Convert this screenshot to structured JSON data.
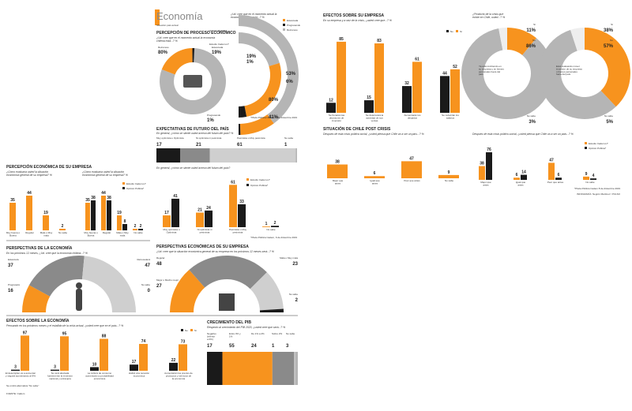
{
  "colors": {
    "orange": "#f7931e",
    "black": "#1a1a1a",
    "gray": "#cfcfcf",
    "darkgray": "#8a8a8a",
    "midgray": "#b5b5b5"
  },
  "header": {
    "title": "Economía",
    "subtitle": "Situación país actual"
  },
  "sections": {
    "percepcion_proceso": {
      "title": "PERCEPCIÓN DE PROCESO ECONÓMICO",
      "question": "¿Ud. cree que en el momento actual la economía chilena está...? %"
    },
    "cree_estancada": {
      "question": "¿Ud. cree que en el momento actual la economía chilena está...? %"
    },
    "expectativas": {
      "title": "EXPECTATIVAS DE FUTURO DEL PAÍS",
      "question": "En general, ¿cómo se siente usted acerca del futuro del país? %",
      "question2": "En general, ¿cómo se siente usted acerca del futuro del país?"
    },
    "percepcion_empresa": {
      "title": "PERCEPCIÓN ECONÓMICA DE SU EMPRESA",
      "question": "¿Cómo evaluaría usted la situación económica general de su empresa? %",
      "question2": "¿Cómo evaluaría usted la situación económica general de su empresa? %"
    },
    "perspectivas_economia": {
      "title": "PERSPECTIVAS DE LA ECONOMÍA",
      "question": "En los próximos 12 meses, ¿Ud. cree que la economía chilena...? %"
    },
    "perspectivas_empresa": {
      "title": "PERSPECTIVAS ECONÓMICAS DE SU EMPRESA",
      "question": "¿Ud. cree que la situación económica general de su empresa en los próximos 12 meses será...? %"
    },
    "efectos_economia": {
      "title": "EFECTOS SOBRE LA ECONOMÍA",
      "question": "Pensando en los próximos meses y el estallido de la crisis actual, ¿usted cree que en el país...? %"
    },
    "crecimiento_pib": {
      "title": "CRECIMIENTO DEL PIB",
      "question": "Respecto al crecimiento del PIB 2020, ¿usted cree que será...? %"
    },
    "efectos_empresa": {
      "title": "EFECTOS SOBRE SU EMPRESA",
      "question": "En su empresa y a raíz de la crisis, ¿usted cree que...? %"
    },
    "produccion_crisis": {
      "question": "¿Producto de la crisis que existe en Chile, usted...? %"
    },
    "situacion_post": {
      "title": "SITUACIÓN DE CHILE POST CRISIS",
      "question": "Después de esta crisis política social, ¿usted piensa que Chile va a ser un país...? %",
      "question2": "Después de esta crisis político-social, ¿usted piensa que Chile va a ser un país...? %"
    }
  },
  "legend": {
    "estudio": "Estudio Cadem-LT",
    "opinion": "Opinión Pública*",
    "no": "No",
    "si": "Sí",
    "estancada": "Estancada",
    "progresando": "Progresando",
    "retroceso": "Retroceso"
  },
  "footnotes": {
    "plaza": "*Plaza Pública Cadem, 8 de diciembre 2019",
    "plaza2": "*Plaza Pública Cadem 8 de diciembre 2019",
    "plaza3": "*Plaza Pública Cadem, 6 de diciembre 2019",
    "fuente": "FUENTE: Cadem",
    "infografia": "INFOGRAFÍA: Negrón Martínez / PULSO",
    "sinfmt": "Se omitió alternativa \"No sabe\""
  },
  "chart_data": [
    {
      "id": "percepcion_donut",
      "type": "pie",
      "labels": [
        "Retroceso",
        "Estancada",
        "Progresando"
      ],
      "values": [
        80,
        19,
        1
      ]
    },
    {
      "id": "estancada_semidonut",
      "type": "pie",
      "labels": [
        "Retroceso",
        "Estancada",
        "Progresando"
      ],
      "series": [
        {
          "name": "Estudio Cadem-LT",
          "values": [
            80,
            19,
            1
          ]
        },
        {
          "name": "Opinión Pública*",
          "values": [
            41,
            53,
            6
          ]
        }
      ]
    },
    {
      "id": "expectativas_bar",
      "type": "bar",
      "categories": [
        "Muy optimista u Optimista",
        "Ni optimista ni pesimista",
        "Pesimista o Muy pesimista",
        "No sabe"
      ],
      "values": [
        17,
        21,
        61,
        1
      ]
    },
    {
      "id": "expectativas_cols",
      "type": "bar",
      "categories": [
        "Muy optimista u Optimista",
        "Ni optimista ni pesimista",
        "Pesimista o Muy pesimista",
        "No sabe"
      ],
      "series": [
        {
          "name": "Estudio Cadem-LT",
          "values": [
            17,
            21,
            61,
            1
          ]
        },
        {
          "name": "Opinión Pública*",
          "values": [
            41,
            24,
            33,
            2
          ]
        }
      ]
    },
    {
      "id": "percepcion_empresa_a",
      "type": "bar",
      "categories": [
        "Muy buena o Buena",
        "Regular",
        "Mala o Muy mala",
        "No sabe"
      ],
      "values": [
        35,
        44,
        19,
        2
      ]
    },
    {
      "id": "percepcion_empresa_b",
      "type": "bar",
      "categories": [
        "Muy buena o Buena",
        "Regular",
        "Mala o Muy mala",
        "No sabe"
      ],
      "series": [
        {
          "name": "Estudio Cadem-LT",
          "values": [
            35,
            44,
            19,
            2
          ]
        },
        {
          "name": "Opinión Pública*",
          "values": [
            38,
            38,
            8,
            2
          ]
        }
      ]
    },
    {
      "id": "perspectivas_economia",
      "type": "pie",
      "labels": [
        "Progresará",
        "Estancará",
        "Retrocederá",
        "No sabe"
      ],
      "values": [
        16,
        37,
        47,
        0
      ]
    },
    {
      "id": "perspectivas_empresa",
      "type": "pie",
      "labels": [
        "Mejor o Mucho mejor",
        "Regular",
        "Mala o Muy mala",
        "No sabe"
      ],
      "values": [
        27,
        48,
        23,
        2
      ]
    },
    {
      "id": "efectos_economia",
      "type": "bar",
      "categories": [
        "El desempleo va a aumentar y seguirá aumentando al 8%",
        "Se verá afectada fuertemente la inversión nacional y extranjera",
        "La cultura de consumo aumentará su probabilidad económica",
        "Habrá una recesión económica",
        "Aumentarán los precios de productos y servicios de la economía"
      ],
      "series": [
        {
          "name": "No",
          "values": [
            3,
            3,
            10,
            17,
            22
          ]
        },
        {
          "name": "Sí",
          "values": [
            97,
            95,
            88,
            74,
            73
          ]
        }
      ]
    },
    {
      "id": "crecimiento_pib",
      "type": "bar",
      "categories": [
        "Negativo (inferior a 0%)",
        "Entre 0% y 1%",
        "De 1% a 2%",
        "Sobre 2%",
        "No sabe"
      ],
      "values": [
        17,
        55,
        24,
        1,
        3
      ]
    },
    {
      "id": "efectos_empresa",
      "type": "bar",
      "categories": [
        "Se frenarán las decisiones de inversión",
        "Se deteriorará la actividad de sus ventas",
        "Aumentarán los despidos",
        "Se reducirán los salarios"
      ],
      "series": [
        {
          "name": "No",
          "values": [
            12,
            15,
            32,
            44
          ]
        },
        {
          "name": "Sí",
          "values": [
            85,
            83,
            61,
            52
          ]
        }
      ]
    },
    {
      "id": "produccion_crisis_a",
      "type": "pie",
      "labels": [
        "Sí",
        "No",
        "No sabe"
      ],
      "values": [
        11,
        86,
        3
      ]
    },
    {
      "id": "produccion_crisis_b",
      "type": "pie",
      "labels": [
        "Sí",
        "No",
        "No sabe"
      ],
      "values": [
        38,
        57,
        5
      ]
    },
    {
      "id": "post_crisis_a",
      "type": "bar",
      "categories": [
        "Mejor que antes",
        "Igual que antes",
        "Peor que antes",
        "No sabe"
      ],
      "values": [
        38,
        6,
        47,
        9
      ]
    },
    {
      "id": "post_crisis_b",
      "type": "bar",
      "categories": [
        "Mejor que antes",
        "Igual que antes",
        "Peor que antes",
        "No sabe"
      ],
      "series": [
        {
          "name": "Estudio Cadem-LT",
          "values": [
            38,
            6,
            47,
            9
          ]
        },
        {
          "name": "Opinión Pública*",
          "values": [
            76,
            14,
            6,
            4
          ]
        }
      ]
    }
  ]
}
